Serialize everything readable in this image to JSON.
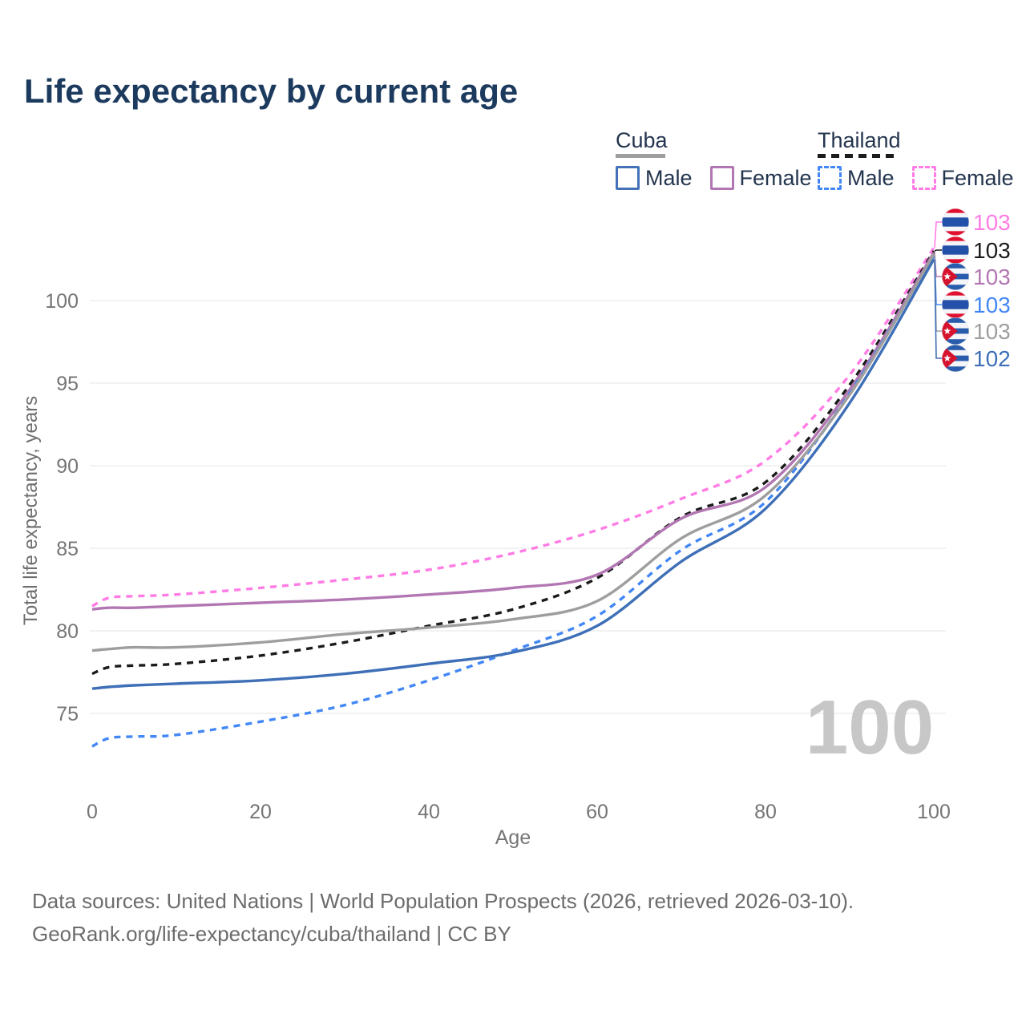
{
  "header": {
    "title": "Life expectancy by current age"
  },
  "legend": {
    "groups": [
      {
        "name": "Cuba",
        "line_style": "solid",
        "underline_color": "#9e9e9e",
        "items": [
          {
            "label": "Male",
            "color": "#4472b8",
            "dashed": false
          },
          {
            "label": "Female",
            "color": "#b277b2",
            "dashed": false
          }
        ]
      },
      {
        "name": "Thailand",
        "line_style": "dashed",
        "underline_color": "#1c1c1c",
        "items": [
          {
            "label": "Male",
            "color": "#4287f5",
            "dashed": true
          },
          {
            "label": "Female",
            "color": "#ff7ce5",
            "dashed": true
          }
        ]
      }
    ]
  },
  "chart_data": {
    "type": "line",
    "title": "Life expectancy by current age",
    "xlabel": "Age",
    "ylabel": "Total life expectancy, years",
    "xlim": [
      0,
      100
    ],
    "ylim": [
      72.5,
      104.5
    ],
    "x_ticks": [
      0,
      20,
      40,
      60,
      80,
      100
    ],
    "y_ticks": [
      75,
      80,
      85,
      90,
      95,
      100
    ],
    "grid": "horizontal",
    "watermark": "100",
    "legend_position": "top-right",
    "x": [
      0,
      2,
      5,
      10,
      20,
      30,
      40,
      50,
      60,
      70,
      80,
      90,
      100
    ],
    "series": [
      {
        "name": "Thailand Female",
        "flag": "thailand",
        "color": "#ff7ce5",
        "dashed": true,
        "end_label": "103",
        "values": [
          81.5,
          82.0,
          82.1,
          82.2,
          82.6,
          83.1,
          83.7,
          84.7,
          86.1,
          88.0,
          90.3,
          95.5,
          103.2
        ]
      },
      {
        "name": "Thailand",
        "flag": "thailand",
        "color": "#1b1b1b",
        "dashed": true,
        "end_label": "103",
        "values": [
          77.4,
          77.8,
          77.9,
          78.0,
          78.5,
          79.3,
          80.3,
          81.3,
          83.2,
          86.9,
          89.0,
          94.9,
          103.0
        ]
      },
      {
        "name": "Cuba Female",
        "flag": "cuba",
        "color": "#b277b2",
        "dashed": false,
        "end_label": "103",
        "values": [
          81.3,
          81.4,
          81.4,
          81.5,
          81.7,
          81.9,
          82.2,
          82.6,
          83.4,
          86.8,
          88.7,
          94.6,
          102.9
        ]
      },
      {
        "name": "Thailand Male",
        "flag": "thailand",
        "color": "#4287f5",
        "dashed": true,
        "end_label": "103",
        "values": [
          73.0,
          73.5,
          73.6,
          73.7,
          74.5,
          75.5,
          77.0,
          78.8,
          80.9,
          84.9,
          87.8,
          94.4,
          102.7
        ]
      },
      {
        "name": "Cuba",
        "flag": "cuba",
        "color": "#9e9e9e",
        "dashed": false,
        "end_label": "103",
        "values": [
          78.8,
          78.9,
          79.0,
          79.0,
          79.3,
          79.8,
          80.2,
          80.7,
          81.8,
          85.6,
          88.2,
          94.3,
          102.8
        ]
      },
      {
        "name": "Cuba Male",
        "flag": "cuba",
        "color": "#3e6fb7",
        "dashed": false,
        "end_label": "102",
        "values": [
          76.5,
          76.6,
          76.7,
          76.8,
          77.0,
          77.4,
          78.0,
          78.7,
          80.3,
          84.2,
          87.4,
          93.8,
          102.5
        ]
      }
    ]
  },
  "footer": {
    "line1": "Data sources: United Nations | World Population Prospects (2026, retrieved 2026-03-10).",
    "line2": "GeoRank.org/life-expectancy/cuba/thailand | CC BY"
  }
}
